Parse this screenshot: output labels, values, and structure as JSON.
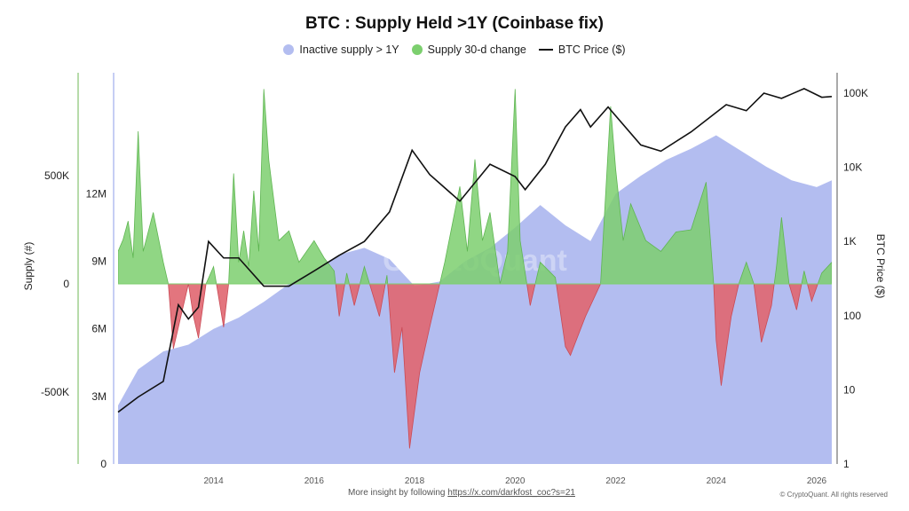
{
  "chart_data": {
    "type": "area",
    "title": "BTC : Supply Held >1Y (Coinbase fix)",
    "legend": [
      "Inactive supply > 1Y",
      "Supply 30-d change",
      "BTC Price ($)"
    ],
    "legend_placement": "top-center",
    "colors": {
      "supply": "#b3bdf0",
      "change_pos": "#7ccf6e",
      "change_neg": "#e06670",
      "price": "#111111"
    },
    "xlabel": "",
    "x_ticks": [
      "2014",
      "2016",
      "2018",
      "2020",
      "2022",
      "2024",
      "2026"
    ],
    "xlim": [
      2012.1,
      2026.3
    ],
    "y_change": {
      "label": "Supply (#)",
      "ticks": [
        "500K",
        "0",
        "-500K"
      ],
      "ylim": [
        -830000,
        830000
      ]
    },
    "y_supply": {
      "ticks": [
        "0",
        "3M",
        "6M",
        "9M",
        "12M"
      ],
      "ylim": [
        0,
        17100000
      ]
    },
    "y_price": {
      "label": "BTC Price ($)",
      "scale": "log",
      "ticks": [
        "1",
        "10",
        "100",
        "1K",
        "10K",
        "100K"
      ],
      "ylim": [
        1,
        180000
      ]
    },
    "series": [
      {
        "name": "Inactive supply > 1Y",
        "points": [
          [
            2012.1,
            2600000.0
          ],
          [
            2012.5,
            4200000.0
          ],
          [
            2013.0,
            5000000.0
          ],
          [
            2013.5,
            5300000.0
          ],
          [
            2014.0,
            6000000.0
          ],
          [
            2014.5,
            6500000.0
          ],
          [
            2015.0,
            7200000.0
          ],
          [
            2015.5,
            8000000.0
          ],
          [
            2016.0,
            8600000.0
          ],
          [
            2016.5,
            9300000.0
          ],
          [
            2017.0,
            9600000.0
          ],
          [
            2017.5,
            9100000.0
          ],
          [
            2018.0,
            7900000.0
          ],
          [
            2018.5,
            8100000.0
          ],
          [
            2019.0,
            9000000.0
          ],
          [
            2019.5,
            9600000.0
          ],
          [
            2020.0,
            10500000.0
          ],
          [
            2020.5,
            11500000.0
          ],
          [
            2021.0,
            10600000.0
          ],
          [
            2021.5,
            9900000.0
          ],
          [
            2022.0,
            12000000.0
          ],
          [
            2022.5,
            12800000.0
          ],
          [
            2023.0,
            13500000.0
          ],
          [
            2023.5,
            14000000.0
          ],
          [
            2024.0,
            14600000.0
          ],
          [
            2024.5,
            13900000.0
          ],
          [
            2025.0,
            13200000.0
          ],
          [
            2025.5,
            12600000.0
          ],
          [
            2026.0,
            12300000.0
          ],
          [
            2026.3,
            12600000.0
          ]
        ]
      },
      {
        "name": "Supply 30-d change",
        "points": [
          [
            2012.1,
            150000
          ],
          [
            2012.2,
            205000
          ],
          [
            2012.3,
            290000
          ],
          [
            2012.4,
            120000
          ],
          [
            2012.5,
            705000
          ],
          [
            2012.6,
            150000
          ],
          [
            2012.8,
            330000
          ],
          [
            2013.0,
            100000
          ],
          [
            2013.1,
            0
          ],
          [
            2013.2,
            -300000
          ],
          [
            2013.4,
            -100000
          ],
          [
            2013.5,
            0
          ],
          [
            2013.6,
            -150000
          ],
          [
            2013.7,
            -250000
          ],
          [
            2013.85,
            0
          ],
          [
            2014.0,
            80000
          ],
          [
            2014.2,
            -200000
          ],
          [
            2014.3,
            0
          ],
          [
            2014.4,
            510000
          ],
          [
            2014.5,
            100000
          ],
          [
            2014.6,
            245000
          ],
          [
            2014.7,
            80000
          ],
          [
            2014.8,
            430000
          ],
          [
            2014.9,
            150000
          ],
          [
            2015.0,
            900000
          ],
          [
            2015.1,
            570000
          ],
          [
            2015.3,
            200000
          ],
          [
            2015.5,
            245000
          ],
          [
            2015.7,
            100000
          ],
          [
            2016.0,
            200000
          ],
          [
            2016.2,
            120000
          ],
          [
            2016.4,
            60000
          ],
          [
            2016.5,
            -150000
          ],
          [
            2016.65,
            50000
          ],
          [
            2016.8,
            -100000
          ],
          [
            2017.0,
            80000
          ],
          [
            2017.3,
            -150000
          ],
          [
            2017.45,
            40000
          ],
          [
            2017.6,
            -410000
          ],
          [
            2017.75,
            -200000
          ],
          [
            2017.9,
            -760000
          ],
          [
            2018.1,
            -410000
          ],
          [
            2018.3,
            -200000
          ],
          [
            2018.5,
            0
          ],
          [
            2018.6,
            100000
          ],
          [
            2018.9,
            450000
          ],
          [
            2019.05,
            150000
          ],
          [
            2019.2,
            575000
          ],
          [
            2019.35,
            200000
          ],
          [
            2019.5,
            330000
          ],
          [
            2019.7,
            0
          ],
          [
            2019.85,
            150000
          ],
          [
            2020.0,
            900000
          ],
          [
            2020.1,
            200000
          ],
          [
            2020.3,
            -100000
          ],
          [
            2020.5,
            100000
          ],
          [
            2020.8,
            30000
          ],
          [
            2021.0,
            -290000
          ],
          [
            2021.1,
            -330000
          ],
          [
            2021.4,
            -150000
          ],
          [
            2021.7,
            0
          ],
          [
            2021.9,
            820000
          ],
          [
            2022.0,
            530000
          ],
          [
            2022.15,
            200000
          ],
          [
            2022.3,
            370000
          ],
          [
            2022.6,
            200000
          ],
          [
            2022.9,
            150000
          ],
          [
            2023.2,
            240000
          ],
          [
            2023.5,
            250000
          ],
          [
            2023.8,
            470000
          ],
          [
            2023.95,
            0
          ],
          [
            2024.0,
            -260000
          ],
          [
            2024.1,
            -470000
          ],
          [
            2024.3,
            -150000
          ],
          [
            2024.45,
            0
          ],
          [
            2024.6,
            100000
          ],
          [
            2024.75,
            0
          ],
          [
            2024.9,
            -270000
          ],
          [
            2025.1,
            -100000
          ],
          [
            2025.2,
            80000
          ],
          [
            2025.3,
            307000
          ],
          [
            2025.45,
            0
          ],
          [
            2025.6,
            -120000
          ],
          [
            2025.75,
            60000
          ],
          [
            2025.9,
            -80000
          ],
          [
            2026.1,
            50000
          ],
          [
            2026.3,
            100000
          ]
        ]
      },
      {
        "name": "BTC Price ($)",
        "points": [
          [
            2012.1,
            5
          ],
          [
            2012.5,
            8
          ],
          [
            2013.0,
            13
          ],
          [
            2013.3,
            140
          ],
          [
            2013.5,
            90
          ],
          [
            2013.7,
            130
          ],
          [
            2013.9,
            1000
          ],
          [
            2014.2,
            600
          ],
          [
            2014.5,
            600
          ],
          [
            2015.0,
            250
          ],
          [
            2015.5,
            250
          ],
          [
            2016.0,
            400
          ],
          [
            2016.5,
            650
          ],
          [
            2017.0,
            1000
          ],
          [
            2017.5,
            2500
          ],
          [
            2017.95,
            17000
          ],
          [
            2018.3,
            8000
          ],
          [
            2018.9,
            3500
          ],
          [
            2019.5,
            11000
          ],
          [
            2020.0,
            7500
          ],
          [
            2020.2,
            5000
          ],
          [
            2020.6,
            11000
          ],
          [
            2021.0,
            35000
          ],
          [
            2021.3,
            60000
          ],
          [
            2021.5,
            35000
          ],
          [
            2021.85,
            65000
          ],
          [
            2022.5,
            20000
          ],
          [
            2022.9,
            16500
          ],
          [
            2023.5,
            30000
          ],
          [
            2024.2,
            70000
          ],
          [
            2024.6,
            58000
          ],
          [
            2024.95,
            100000
          ],
          [
            2025.3,
            85000
          ],
          [
            2025.75,
            115000
          ],
          [
            2026.1,
            88000
          ],
          [
            2026.3,
            90000
          ]
        ]
      }
    ]
  },
  "footer": {
    "text": "More insight by following ",
    "link": "https://x.com/darkfost_coc?s=21",
    "copyright": "© CryptoQuant. All rights reserved"
  },
  "watermark": "CryptoQuant"
}
